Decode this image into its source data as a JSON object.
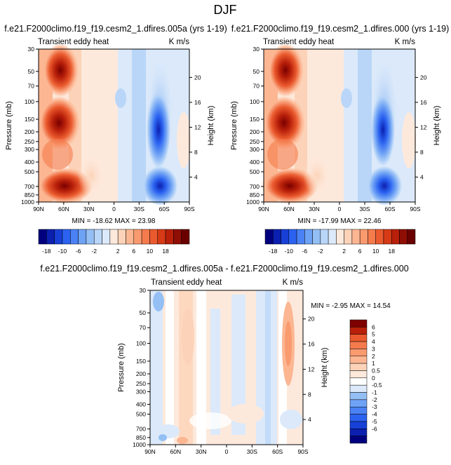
{
  "page": {
    "title": "DJF"
  },
  "colors": {
    "diverging_scale_19": [
      "#00007f",
      "#0b1fb0",
      "#1840d6",
      "#2b62f0",
      "#4a82f5",
      "#6ea2f5",
      "#94bff5",
      "#b9d6f8",
      "#dbe9fa",
      "#fde9dc",
      "#fcd3b8",
      "#fcb692",
      "#f99a6f",
      "#f57b4d",
      "#ea5a2e",
      "#d63a16",
      "#b8200a",
      "#8f0e05",
      "#6a0000"
    ],
    "diverging_scale_diff": [
      "#00007f",
      "#0b1fb0",
      "#1840d6",
      "#2b62f0",
      "#4a82f5",
      "#6ea2f5",
      "#94bff5",
      "#dbe9fa",
      "#ffffff",
      "#fde9dc",
      "#fcd3b8",
      "#fcb692",
      "#f99a6f",
      "#f57b4d",
      "#ea5a2e",
      "#b8200a",
      "#7f0000"
    ]
  },
  "chart_data": [
    {
      "type": "heatmap",
      "title": "f.e21.F2000climo.f19_f19.cesm2_1.dfires.005a (yrs 1-19)",
      "subtitle_left": "Transient eddy heat",
      "subtitle_right": "K m/s",
      "ylabel": "Pressure (mb)",
      "ylabel_right": "Height (km)",
      "x_ticks": [
        "90N",
        "60N",
        "30N",
        "0",
        "30S",
        "60S",
        "90S"
      ],
      "y_ticks": [
        "30",
        "50",
        "70",
        "100",
        "150",
        "200",
        "250",
        "300",
        "400",
        "500",
        "700",
        "850",
        "1000"
      ],
      "y_ticks_right": [
        "20",
        "16",
        "12",
        "8",
        "4"
      ],
      "stats": "MIN = -18.62   MAX = 23.98",
      "levels": [
        "-18",
        "-10",
        "-6",
        "-2",
        "2",
        "6",
        "10",
        "18"
      ],
      "min": -18.62,
      "max": 23.98
    },
    {
      "type": "heatmap",
      "title": "f.e21.F2000climo.f19_f19.cesm2_1.dfires.000 (yrs 1-19)",
      "subtitle_left": "Transient eddy heat",
      "subtitle_right": "K m/s",
      "ylabel": "Pressure (mb)",
      "ylabel_right": "Height (km)",
      "x_ticks": [
        "90N",
        "60N",
        "30N",
        "0",
        "30S",
        "60S",
        "90S"
      ],
      "y_ticks": [
        "30",
        "50",
        "70",
        "100",
        "150",
        "200",
        "250",
        "300",
        "400",
        "500",
        "700",
        "850",
        "1000"
      ],
      "y_ticks_right": [
        "20",
        "16",
        "12",
        "8",
        "4"
      ],
      "stats": "MIN = -17.99   MAX = 22.46",
      "levels": [
        "-18",
        "-10",
        "-6",
        "-2",
        "2",
        "6",
        "10",
        "18"
      ],
      "min": -17.99,
      "max": 22.46
    },
    {
      "type": "heatmap",
      "title": "f.e21.F2000climo.f19_f19.cesm2_1.dfires.005a - f.e21.F2000climo.f19_f19.cesm2_1.dfires.000",
      "subtitle_left": "Transient eddy heat",
      "subtitle_right": "K m/s",
      "ylabel": "Pressure (mb)",
      "ylabel_right": "Height (km)",
      "x_ticks": [
        "90N",
        "60N",
        "30N",
        "0",
        "30S",
        "60S",
        "90S"
      ],
      "y_ticks": [
        "30",
        "50",
        "70",
        "100",
        "150",
        "200",
        "250",
        "300",
        "400",
        "500",
        "700",
        "850",
        "1000"
      ],
      "y_ticks_right": [
        "20",
        "16",
        "12",
        "8",
        "4"
      ],
      "stats": "MIN = -2.95   MAX = 14.54",
      "levels": [
        "6",
        "5",
        "4",
        "3",
        "2",
        "1",
        "0.5",
        "0",
        "-0.5",
        "-1",
        "-2",
        "-3",
        "-4",
        "-5",
        "-6"
      ],
      "min": -2.95,
      "max": 14.54
    }
  ]
}
